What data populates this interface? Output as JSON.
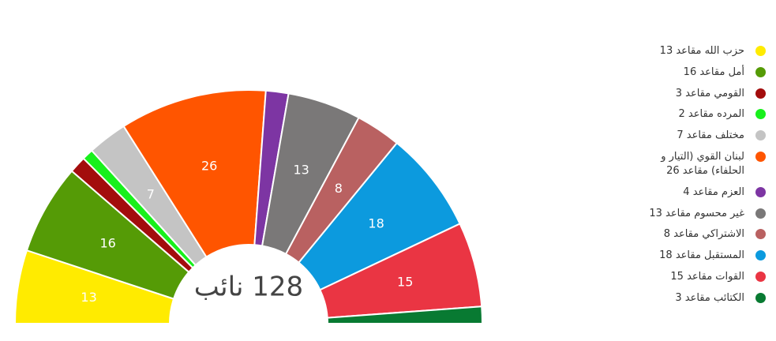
{
  "chart_data": {
    "type": "parliament",
    "center_label": "128 نائب",
    "categories": [
      "حزب الله مقاعد 13",
      "أمل مقاعد 16",
      "القومي مقاعد 3",
      "المرده مقاعد 2",
      "مختلف مقاعد 7",
      "لبنان القوي (التيار و الحلفاء) مقاعد 26",
      "العزم مقاعد 4",
      "غير محسوم مقاعد 13",
      "الاشتراكي مقاعد 8",
      "المستقبل مقاعد 18",
      "القوات مقاعد 15",
      "الكتائب مقاعد 3"
    ],
    "values": [
      13,
      16,
      3,
      2,
      7,
      26,
      4,
      13,
      8,
      18,
      15,
      3
    ],
    "colors": [
      "#ffeb00",
      "#559b06",
      "#a30d0d",
      "#18f01c",
      "#c4c4c4",
      "#ff5500",
      "#7d35a3",
      "#7a7878",
      "#b96161",
      "#0c9ade",
      "#ea3543",
      "#087a32"
    ]
  }
}
